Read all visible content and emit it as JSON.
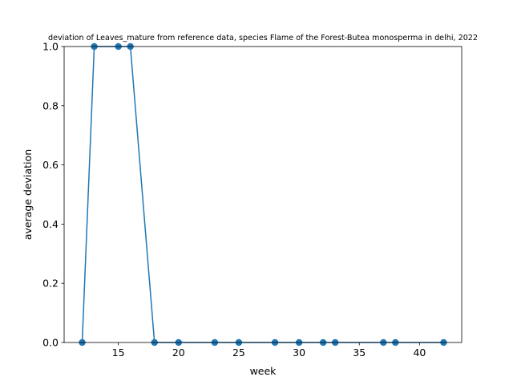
{
  "chart_data": {
    "type": "line",
    "title": "deviation of Leaves_mature from reference data, species Flame of the Forest-Butea monosperma in delhi, 2022",
    "xlabel": "week",
    "ylabel": "average deviation",
    "xlim": [
      10.5,
      43.5
    ],
    "ylim": [
      0,
      1.0
    ],
    "xticks": [
      15,
      20,
      25,
      30,
      35,
      40
    ],
    "yticks": [
      0.0,
      0.2,
      0.4,
      0.6,
      0.8,
      1.0
    ],
    "xtick_labels": [
      "15",
      "20",
      "25",
      "30",
      "35",
      "40"
    ],
    "ytick_labels": [
      "0.0",
      "0.2",
      "0.4",
      "0.6",
      "0.8",
      "1.0"
    ],
    "grid": false,
    "series": [
      {
        "color": "#1f77b4",
        "marker": "circle",
        "points": [
          {
            "x": 12,
            "y": 0
          },
          {
            "x": 13,
            "y": 1
          },
          {
            "x": 15,
            "y": 1
          },
          {
            "x": 16,
            "y": 1
          },
          {
            "x": 18,
            "y": 0
          },
          {
            "x": 20,
            "y": 0
          },
          {
            "x": 23,
            "y": 0
          },
          {
            "x": 25,
            "y": 0
          },
          {
            "x": 28,
            "y": 0
          },
          {
            "x": 30,
            "y": 0
          },
          {
            "x": 32,
            "y": 0
          },
          {
            "x": 33,
            "y": 0
          },
          {
            "x": 37,
            "y": 0
          },
          {
            "x": 38,
            "y": 0
          },
          {
            "x": 42,
            "y": 0
          }
        ]
      }
    ]
  }
}
